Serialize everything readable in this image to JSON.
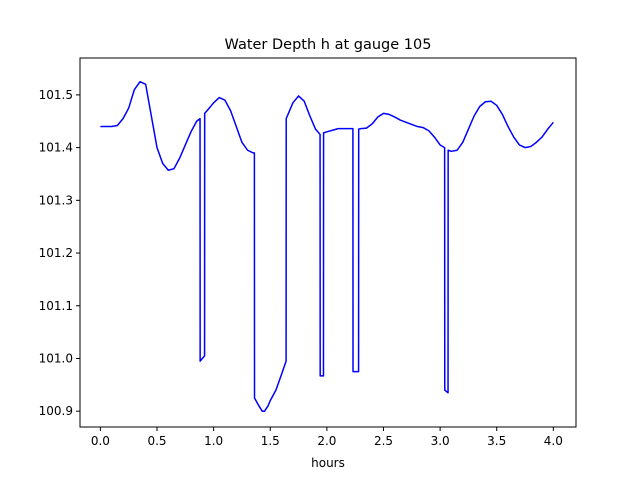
{
  "chart_data": {
    "type": "line",
    "title": "Water Depth h at gauge 105",
    "xlabel": "hours",
    "ylabel": "",
    "xlim": [
      -0.18,
      4.2
    ],
    "ylim": [
      100.87,
      101.57
    ],
    "xticks": [
      0.0,
      0.5,
      1.0,
      1.5,
      2.0,
      2.5,
      3.0,
      3.5,
      4.0
    ],
    "xtick_labels": [
      "0.0",
      "0.5",
      "1.0",
      "1.5",
      "2.0",
      "2.5",
      "3.0",
      "3.5",
      "4.0"
    ],
    "yticks": [
      100.9,
      101.0,
      101.1,
      101.2,
      101.3,
      101.4,
      101.5
    ],
    "ytick_labels": [
      "100.9",
      "101.0",
      "101.1",
      "101.2",
      "101.3",
      "101.4",
      "101.5"
    ],
    "grid": false,
    "legend": null,
    "series": [
      {
        "color": "#0000ff",
        "x": [
          0.0,
          0.05,
          0.1,
          0.15,
          0.2,
          0.25,
          0.3,
          0.35,
          0.4,
          0.45,
          0.5,
          0.55,
          0.6,
          0.65,
          0.7,
          0.75,
          0.8,
          0.85,
          0.88,
          0.881,
          0.9,
          0.92,
          0.921,
          0.95,
          1.0,
          1.05,
          1.1,
          1.15,
          1.2,
          1.25,
          1.3,
          1.35,
          1.36,
          1.361,
          1.4,
          1.43,
          1.45,
          1.48,
          1.5,
          1.55,
          1.6,
          1.64,
          1.641,
          1.7,
          1.75,
          1.8,
          1.85,
          1.9,
          1.94,
          1.941,
          1.97,
          1.971,
          2.0,
          2.05,
          2.1,
          2.15,
          2.2,
          2.23,
          2.231,
          2.28,
          2.281,
          2.3,
          2.35,
          2.4,
          2.45,
          2.5,
          2.55,
          2.6,
          2.65,
          2.7,
          2.75,
          2.8,
          2.85,
          2.9,
          2.95,
          3.0,
          3.04,
          3.041,
          3.07,
          3.071,
          3.1,
          3.15,
          3.2,
          3.25,
          3.3,
          3.35,
          3.4,
          3.45,
          3.5,
          3.55,
          3.6,
          3.65,
          3.7,
          3.75,
          3.8,
          3.85,
          3.9,
          3.95,
          4.0
        ],
        "y": [
          101.44,
          101.44,
          101.44,
          101.442,
          101.455,
          101.475,
          101.51,
          101.525,
          101.52,
          101.46,
          101.4,
          101.37,
          101.357,
          101.36,
          101.38,
          101.405,
          101.43,
          101.45,
          101.455,
          100.995,
          101.0,
          101.005,
          101.465,
          101.472,
          101.485,
          101.495,
          101.49,
          101.47,
          101.44,
          101.41,
          101.395,
          101.39,
          101.39,
          100.925,
          100.91,
          100.9,
          100.9,
          100.91,
          100.92,
          100.94,
          100.97,
          100.995,
          101.455,
          101.485,
          101.498,
          101.488,
          101.46,
          101.435,
          101.425,
          100.967,
          100.967,
          101.428,
          101.43,
          101.433,
          101.436,
          101.436,
          101.436,
          101.436,
          100.975,
          100.975,
          101.435,
          101.436,
          101.437,
          101.445,
          101.458,
          101.465,
          101.463,
          101.458,
          101.452,
          101.448,
          101.444,
          101.44,
          101.438,
          101.432,
          101.42,
          101.405,
          101.4,
          100.94,
          100.935,
          101.395,
          101.393,
          101.395,
          101.41,
          101.435,
          101.46,
          101.478,
          101.487,
          101.488,
          101.48,
          101.463,
          101.44,
          101.42,
          101.405,
          101.4,
          101.402,
          101.41,
          101.42,
          101.435,
          101.448
        ]
      }
    ]
  }
}
